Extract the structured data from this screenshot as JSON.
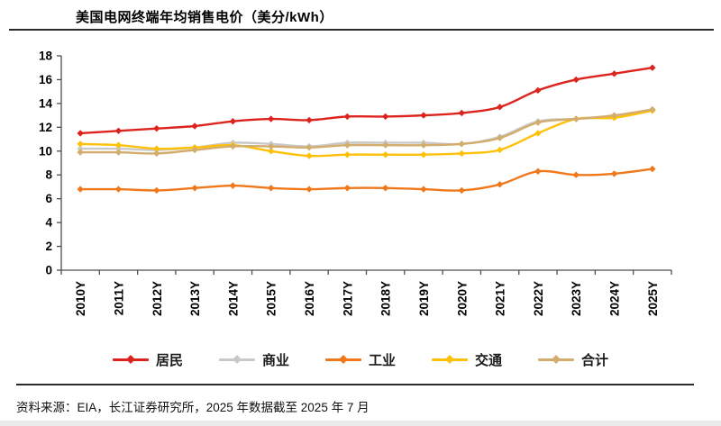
{
  "header": {
    "title": "美国电网终端年均销售电价（美分/kWh）"
  },
  "chart_data": {
    "type": "line",
    "title": "美国电网终端年均销售电价（美分/kWh）",
    "unit": "美分/kWh",
    "categories": [
      "2010Y",
      "2011Y",
      "2012Y",
      "2013Y",
      "2014Y",
      "2015Y",
      "2016Y",
      "2017Y",
      "2018Y",
      "2019Y",
      "2020Y",
      "2021Y",
      "2022Y",
      "2023Y",
      "2024Y",
      "2025Y"
    ],
    "series": [
      {
        "id": "residential",
        "name": "居民",
        "color": "#dd231d",
        "values": [
          11.5,
          11.7,
          11.9,
          12.1,
          12.5,
          12.7,
          12.6,
          12.9,
          12.9,
          13.0,
          13.2,
          13.7,
          15.1,
          16.0,
          16.5,
          17.0
        ]
      },
      {
        "id": "commercial",
        "name": "商业",
        "color": "#c9c9c9",
        "values": [
          10.2,
          10.2,
          10.1,
          10.3,
          10.7,
          10.6,
          10.4,
          10.7,
          10.7,
          10.7,
          10.6,
          11.2,
          12.5,
          12.7,
          12.9,
          13.4
        ]
      },
      {
        "id": "industrial",
        "name": "工业",
        "color": "#f0781a",
        "values": [
          6.8,
          6.8,
          6.7,
          6.9,
          7.1,
          6.9,
          6.8,
          6.9,
          6.9,
          6.8,
          6.7,
          7.2,
          8.3,
          8.0,
          8.1,
          8.5
        ]
      },
      {
        "id": "transportation",
        "name": "交通",
        "color": "#ffc008",
        "values": [
          10.6,
          10.5,
          10.2,
          10.3,
          10.5,
          10.0,
          9.6,
          9.7,
          9.7,
          9.7,
          9.8,
          10.1,
          11.5,
          12.7,
          12.8,
          13.4
        ]
      },
      {
        "id": "total",
        "name": "合计",
        "color": "#d2ad6d",
        "values": [
          9.9,
          9.9,
          9.8,
          10.1,
          10.4,
          10.4,
          10.3,
          10.5,
          10.5,
          10.5,
          10.6,
          11.1,
          12.4,
          12.7,
          13.0,
          13.5
        ]
      }
    ],
    "ylim": [
      0,
      18
    ],
    "ytick_step": 2,
    "grid": false,
    "legend_position": "bottom",
    "marker": "diamond",
    "axis_color": "#4d4d4d",
    "tick_label_color": "#000000"
  },
  "footer": {
    "text": "资料来源：EIA，长江证券研究所，2025 年数据截至 2025 年 7 月"
  }
}
